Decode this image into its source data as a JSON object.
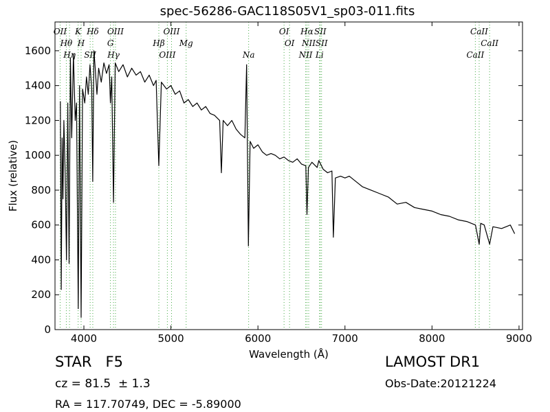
{
  "chart_data": {
    "type": "line",
    "title": "spec-56286-GAC118S05V1_sp03-011.fits",
    "x_label": "Wavelength (Å)",
    "y_label": "Flux (relative)",
    "color": "#000000",
    "xlim": [
      3668,
      9040
    ],
    "xticks": [
      4000,
      5000,
      6000,
      7000,
      8000,
      9000
    ],
    "ylim": [
      0,
      1765
    ],
    "yticks": [
      0,
      200,
      400,
      600,
      800,
      1000,
      1200,
      1400,
      1600
    ],
    "x": [
      3730,
      3740,
      3750,
      3760,
      3770,
      3785,
      3800,
      3815,
      3830,
      3845,
      3860,
      3880,
      3900,
      3915,
      3935,
      3950,
      3968,
      3985,
      4010,
      4030,
      4050,
      4070,
      4090,
      4102,
      4115,
      4130,
      4150,
      4170,
      4200,
      4230,
      4260,
      4290,
      4305,
      4320,
      4340,
      4360,
      4400,
      4450,
      4500,
      4550,
      4600,
      4650,
      4700,
      4750,
      4800,
      4830,
      4861,
      4890,
      4950,
      5000,
      5050,
      5100,
      5150,
      5200,
      5250,
      5300,
      5350,
      5400,
      5450,
      5500,
      5560,
      5580,
      5600,
      5650,
      5700,
      5750,
      5800,
      5850,
      5870,
      5890,
      5910,
      5950,
      6000,
      6050,
      6100,
      6150,
      6200,
      6250,
      6300,
      6350,
      6400,
      6450,
      6500,
      6550,
      6563,
      6580,
      6620,
      6680,
      6700,
      6750,
      6800,
      6850,
      6867,
      6890,
      6950,
      7000,
      7050,
      7100,
      7150,
      7200,
      7300,
      7400,
      7500,
      7600,
      7700,
      7800,
      7900,
      8000,
      8100,
      8200,
      8300,
      8400,
      8500,
      8542,
      8560,
      8600,
      8662,
      8700,
      8800,
      8900,
      8950
    ],
    "values": [
      1310,
      230,
      1100,
      750,
      1200,
      900,
      400,
      1300,
      380,
      1560,
      1100,
      1580,
      1200,
      1300,
      120,
      1400,
      70,
      1380,
      1300,
      1450,
      1350,
      1520,
      1380,
      850,
      1600,
      1500,
      1350,
      1500,
      1420,
      1530,
      1470,
      1520,
      1300,
      1450,
      730,
      1530,
      1480,
      1520,
      1450,
      1500,
      1460,
      1480,
      1420,
      1460,
      1400,
      1430,
      940,
      1420,
      1380,
      1400,
      1350,
      1370,
      1300,
      1320,
      1280,
      1300,
      1260,
      1280,
      1240,
      1230,
      1200,
      900,
      1200,
      1170,
      1200,
      1150,
      1120,
      1100,
      1520,
      480,
      1080,
      1040,
      1060,
      1020,
      1000,
      1010,
      1000,
      980,
      990,
      970,
      960,
      980,
      950,
      940,
      660,
      930,
      960,
      930,
      970,
      920,
      900,
      910,
      530,
      870,
      880,
      870,
      880,
      860,
      840,
      820,
      800,
      780,
      760,
      720,
      730,
      700,
      690,
      680,
      660,
      650,
      630,
      620,
      600,
      490,
      610,
      600,
      490,
      590,
      580,
      600,
      550
    ],
    "annotation_color": "#44aa44",
    "annotations": [
      {
        "text": "OII",
        "x": 3727
      },
      {
        "text": "Hθ",
        "x": 3798
      },
      {
        "text": "Hη",
        "x": 3835
      },
      {
        "text": "K",
        "x": 3934
      },
      {
        "text": "H",
        "x": 3968
      },
      {
        "text": "SII",
        "x": 4072
      },
      {
        "text": "Hδ",
        "x": 4102
      },
      {
        "text": "G",
        "x": 4305
      },
      {
        "text": "Hγ",
        "x": 4340
      },
      {
        "text": "OIII",
        "x": 4363
      },
      {
        "text": "Hβ",
        "x": 4861
      },
      {
        "text": "OIII",
        "x": 4959
      },
      {
        "text": "OIII",
        "x": 5007
      },
      {
        "text": "Mg",
        "x": 5175
      },
      {
        "text": "Na",
        "x": 5893
      },
      {
        "text": "OI",
        "x": 6300
      },
      {
        "text": "OI",
        "x": 6363
      },
      {
        "text": "NII",
        "x": 6548
      },
      {
        "text": "Hα",
        "x": 6563
      },
      {
        "text": "NII",
        "x": 6583
      },
      {
        "text": "Li",
        "x": 6708
      },
      {
        "text": "SII",
        "x": 6716
      },
      {
        "text": "SII",
        "x": 6731
      },
      {
        "text": "CaII",
        "x": 8498
      },
      {
        "text": "CaII",
        "x": 8542
      },
      {
        "text": "CaII",
        "x": 8662
      }
    ]
  },
  "footer": {
    "object_class": "STAR   F5",
    "survey": "LAMOST DR1",
    "redshift": "cz = 81.5  ± 1.3",
    "obs_date": "Obs-Date:20121224",
    "coordinates": "RA = 117.70749, DEC = -5.89000"
  }
}
